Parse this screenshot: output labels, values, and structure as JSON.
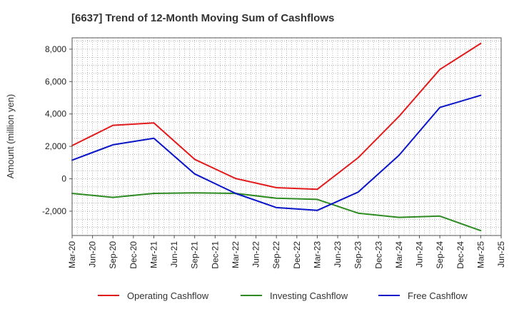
{
  "chart_data": {
    "type": "line",
    "title": "[6637]  Trend of 12-Month Moving Sum of Cashflows",
    "xlabel": "",
    "ylabel": "Amount (million yen)",
    "categories": [
      "Mar-20",
      "Jun-20",
      "Sep-20",
      "Dec-20",
      "Mar-21",
      "Jun-21",
      "Sep-21",
      "Dec-21",
      "Mar-22",
      "Jun-22",
      "Sep-22",
      "Dec-22",
      "Mar-23",
      "Jun-23",
      "Sep-23",
      "Dec-23",
      "Mar-24",
      "Jun-24",
      "Sep-24",
      "Dec-24",
      "Mar-25",
      "Jun-25"
    ],
    "ylim": [
      -3500,
      8700
    ],
    "yticks": [
      -2000,
      0,
      2000,
      4000,
      6000,
      8000
    ],
    "ytick_labels": [
      "-2,000",
      "0",
      "2,000",
      "4,000",
      "6,000",
      "8,000"
    ],
    "grid": true,
    "legend_position": "bottom",
    "series": [
      {
        "name": "Operating Cashflow",
        "color": "#e31a1c",
        "x": [
          "Mar-20",
          "Sep-20",
          "Mar-21",
          "Sep-21",
          "Mar-22",
          "Sep-22",
          "Mar-23",
          "Sep-23",
          "Mar-24",
          "Sep-24",
          "Mar-25"
        ],
        "values": [
          2050,
          3300,
          3450,
          1200,
          20,
          -550,
          -650,
          1300,
          3850,
          6750,
          8350
        ]
      },
      {
        "name": "Investing Cashflow",
        "color": "#2e8b22",
        "x": [
          "Mar-20",
          "Sep-20",
          "Mar-21",
          "Sep-21",
          "Mar-22",
          "Sep-22",
          "Mar-23",
          "Sep-23",
          "Mar-24",
          "Sep-24",
          "Mar-25"
        ],
        "values": [
          -900,
          -1150,
          -900,
          -870,
          -900,
          -1200,
          -1270,
          -2120,
          -2380,
          -2300,
          -3200
        ]
      },
      {
        "name": "Free Cashflow",
        "color": "#0a14c8",
        "x": [
          "Mar-20",
          "Sep-20",
          "Mar-21",
          "Sep-21",
          "Mar-22",
          "Sep-22",
          "Mar-23",
          "Sep-23",
          "Mar-24",
          "Sep-24",
          "Mar-25"
        ],
        "values": [
          1150,
          2100,
          2500,
          300,
          -900,
          -1780,
          -1950,
          -820,
          1450,
          4400,
          5150
        ]
      }
    ]
  }
}
